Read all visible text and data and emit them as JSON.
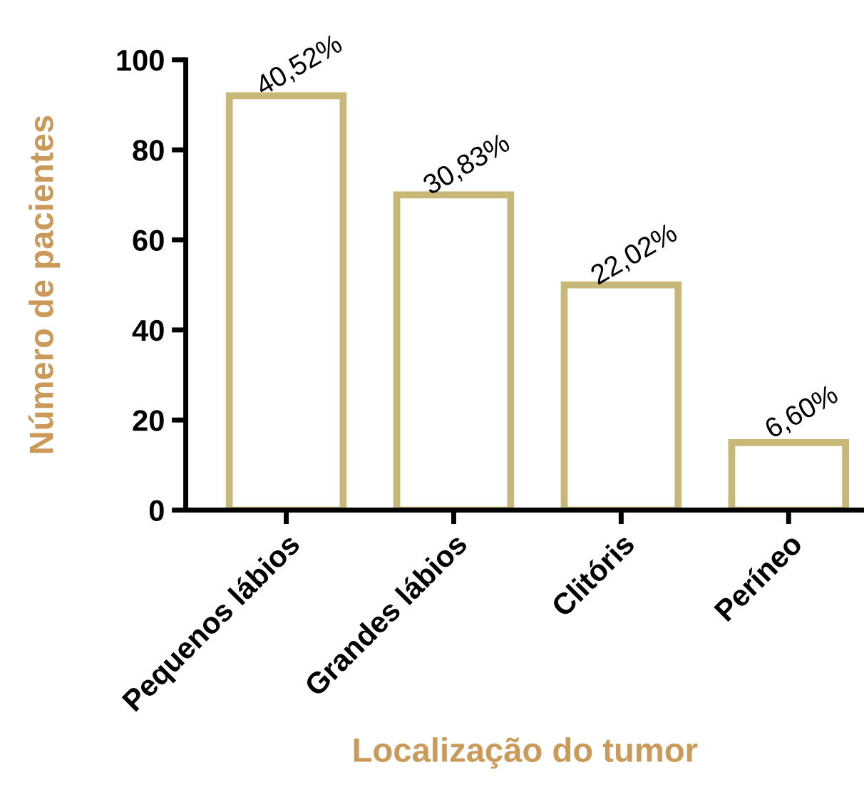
{
  "chart_data": {
    "type": "bar",
    "xlabel": "Localização do tumor",
    "ylabel": "Número de pacientes",
    "categories": [
      "Pequenos lábios",
      "Grandes lábios",
      "Clitóris",
      "Períneo"
    ],
    "values": [
      92,
      70,
      50,
      15
    ],
    "annotations": [
      {
        "text": "40,52%",
        "x": "Pequenos lábios",
        "y": 92
      },
      {
        "text": "30,83%",
        "x": "Grandes lábios",
        "y": 70
      },
      {
        "text": "22,02%",
        "x": "Clitóris",
        "y": 50
      },
      {
        "text": "6,60%",
        "x": "Períneo",
        "y": 15
      }
    ],
    "color": "#c8b878",
    "ylim": [
      0,
      100
    ],
    "yticks": [
      0,
      20,
      40,
      60,
      80,
      100
    ],
    "grid": false,
    "legend": false
  }
}
